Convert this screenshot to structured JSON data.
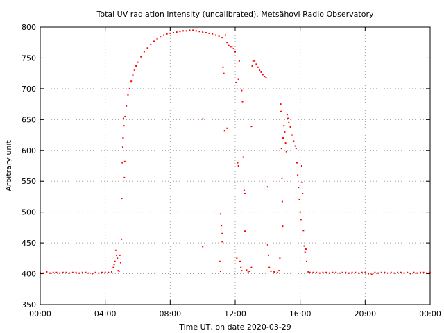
{
  "chart_data": {
    "type": "scatter",
    "title": "Total UV radiation intensity (uncalibrated). Metsähovi Radio Observatory",
    "xlabel": "Time UT, on date 2020-03-29",
    "ylabel": "Arbitrary unit",
    "xlim": [
      0,
      24
    ],
    "ylim": [
      350,
      800
    ],
    "x_unit": "hours UT",
    "x_ticks": [
      0,
      4,
      8,
      12,
      16,
      20,
      24
    ],
    "x_tick_labels": [
      "00:00",
      "04:00",
      "08:00",
      "12:00",
      "16:00",
      "20:00",
      "00:00"
    ],
    "y_ticks": [
      350,
      400,
      450,
      500,
      550,
      600,
      650,
      700,
      750,
      800
    ],
    "y_tick_labels": [
      "350",
      "400",
      "450",
      "500",
      "550",
      "600",
      "650",
      "700",
      "750",
      "800"
    ],
    "grid": true,
    "marker_color": "#ff0000",
    "series": [
      {
        "points": [
          [
            0.0,
            402
          ],
          [
            0.2,
            401
          ],
          [
            0.4,
            403
          ],
          [
            0.6,
            401
          ],
          [
            0.8,
            402
          ],
          [
            1.0,
            402
          ],
          [
            1.2,
            401
          ],
          [
            1.4,
            402
          ],
          [
            1.6,
            402
          ],
          [
            1.8,
            401
          ],
          [
            2.0,
            402
          ],
          [
            2.2,
            402
          ],
          [
            2.4,
            401
          ],
          [
            2.6,
            402
          ],
          [
            2.8,
            402
          ],
          [
            3.0,
            401
          ],
          [
            3.2,
            400
          ],
          [
            3.4,
            402
          ],
          [
            3.6,
            401
          ],
          [
            3.8,
            402
          ],
          [
            4.0,
            402
          ],
          [
            4.2,
            402
          ],
          [
            4.4,
            403
          ],
          [
            4.5,
            410
          ],
          [
            4.55,
            415
          ],
          [
            4.6,
            420
          ],
          [
            4.65,
            438
          ],
          [
            4.7,
            430
          ],
          [
            4.75,
            425
          ],
          [
            4.8,
            405
          ],
          [
            4.85,
            404
          ],
          [
            4.9,
            430
          ],
          [
            4.95,
            418
          ],
          [
            5.0,
            456
          ],
          [
            5.02,
            522
          ],
          [
            5.05,
            580
          ],
          [
            5.08,
            605
          ],
          [
            5.1,
            620
          ],
          [
            5.12,
            652
          ],
          [
            5.15,
            640
          ],
          [
            5.18,
            556
          ],
          [
            5.2,
            582
          ],
          [
            5.22,
            655
          ],
          [
            5.3,
            672
          ],
          [
            5.4,
            690
          ],
          [
            5.5,
            700
          ],
          [
            5.6,
            712
          ],
          [
            5.7,
            722
          ],
          [
            5.8,
            730
          ],
          [
            5.9,
            737
          ],
          [
            6.0,
            743
          ],
          [
            6.2,
            752
          ],
          [
            6.4,
            760
          ],
          [
            6.6,
            766
          ],
          [
            6.8,
            772
          ],
          [
            7.0,
            777
          ],
          [
            7.2,
            781
          ],
          [
            7.4,
            784
          ],
          [
            7.6,
            787
          ],
          [
            7.8,
            789
          ],
          [
            8.0,
            790
          ],
          [
            8.2,
            791
          ],
          [
            8.4,
            792
          ],
          [
            8.6,
            793
          ],
          [
            8.8,
            794
          ],
          [
            9.0,
            794
          ],
          [
            9.2,
            795
          ],
          [
            9.4,
            795
          ],
          [
            9.6,
            794
          ],
          [
            9.8,
            793
          ],
          [
            10.0,
            792
          ],
          [
            10.0,
            651
          ],
          [
            10.0,
            444
          ],
          [
            10.2,
            791
          ],
          [
            10.4,
            790
          ],
          [
            10.6,
            789
          ],
          [
            10.8,
            787
          ],
          [
            11.0,
            785
          ],
          [
            11.05,
            420
          ],
          [
            11.1,
            404
          ],
          [
            11.1,
            497
          ],
          [
            11.15,
            478
          ],
          [
            11.2,
            465
          ],
          [
            11.2,
            452
          ],
          [
            11.2,
            783
          ],
          [
            11.25,
            735
          ],
          [
            11.3,
            725
          ],
          [
            11.35,
            632
          ],
          [
            11.4,
            787
          ],
          [
            11.5,
            636
          ],
          [
            11.5,
            775
          ],
          [
            11.6,
            770
          ],
          [
            11.7,
            768
          ],
          [
            11.8,
            768
          ],
          [
            11.9,
            765
          ],
          [
            12.0,
            760
          ],
          [
            12.05,
            710
          ],
          [
            12.1,
            425
          ],
          [
            12.15,
            580
          ],
          [
            12.2,
            575
          ],
          [
            12.2,
            715
          ],
          [
            12.25,
            745
          ],
          [
            12.3,
            420
          ],
          [
            12.35,
            410
          ],
          [
            12.4,
            405
          ],
          [
            12.4,
            697
          ],
          [
            12.45,
            679
          ],
          [
            12.5,
            589
          ],
          [
            12.55,
            535
          ],
          [
            12.6,
            530
          ],
          [
            12.6,
            469
          ],
          [
            12.7,
            406
          ],
          [
            12.8,
            403
          ],
          [
            12.9,
            404
          ],
          [
            13.0,
            639
          ],
          [
            13.0,
            410
          ],
          [
            13.05,
            737
          ],
          [
            13.1,
            745
          ],
          [
            13.2,
            745
          ],
          [
            13.3,
            740
          ],
          [
            13.4,
            735
          ],
          [
            13.5,
            730
          ],
          [
            13.6,
            727
          ],
          [
            13.7,
            723
          ],
          [
            13.8,
            720
          ],
          [
            13.9,
            718
          ],
          [
            14.0,
            541
          ],
          [
            14.0,
            447
          ],
          [
            14.05,
            430
          ],
          [
            14.1,
            410
          ],
          [
            14.2,
            404
          ],
          [
            14.4,
            403
          ],
          [
            14.6,
            402
          ],
          [
            14.7,
            405
          ],
          [
            14.75,
            425
          ],
          [
            14.8,
            675
          ],
          [
            14.82,
            663
          ],
          [
            14.85,
            603
          ],
          [
            14.88,
            555
          ],
          [
            14.9,
            517
          ],
          [
            14.92,
            477
          ],
          [
            14.95,
            620
          ],
          [
            15.0,
            640
          ],
          [
            15.05,
            630
          ],
          [
            15.1,
            612
          ],
          [
            15.15,
            598
          ],
          [
            15.2,
            658
          ],
          [
            15.25,
            652
          ],
          [
            15.3,
            645
          ],
          [
            15.4,
            638
          ],
          [
            15.5,
            625
          ],
          [
            15.6,
            615
          ],
          [
            15.7,
            607
          ],
          [
            15.75,
            603
          ],
          [
            15.8,
            580
          ],
          [
            15.85,
            560
          ],
          [
            15.9,
            540
          ],
          [
            15.95,
            520
          ],
          [
            16.0,
            500
          ],
          [
            16.05,
            488
          ],
          [
            16.1,
            575
          ],
          [
            16.12,
            548
          ],
          [
            16.15,
            530
          ],
          [
            16.2,
            470
          ],
          [
            16.25,
            445
          ],
          [
            16.3,
            435
          ],
          [
            16.35,
            440
          ],
          [
            16.4,
            420
          ],
          [
            16.5,
            403
          ],
          [
            16.6,
            402
          ],
          [
            16.8,
            402
          ],
          [
            17.0,
            402
          ],
          [
            17.2,
            401
          ],
          [
            17.4,
            402
          ],
          [
            17.6,
            402
          ],
          [
            17.8,
            401
          ],
          [
            18.0,
            402
          ],
          [
            18.2,
            402
          ],
          [
            18.4,
            401
          ],
          [
            18.6,
            402
          ],
          [
            18.8,
            402
          ],
          [
            19.0,
            401
          ],
          [
            19.2,
            402
          ],
          [
            19.4,
            402
          ],
          [
            19.6,
            401
          ],
          [
            19.8,
            402
          ],
          [
            20.0,
            402
          ],
          [
            20.2,
            400
          ],
          [
            20.4,
            399
          ],
          [
            20.6,
            402
          ],
          [
            20.8,
            401
          ],
          [
            21.0,
            402
          ],
          [
            21.2,
            402
          ],
          [
            21.4,
            401
          ],
          [
            21.6,
            402
          ],
          [
            21.8,
            401
          ],
          [
            22.0,
            402
          ],
          [
            22.2,
            402
          ],
          [
            22.4,
            401
          ],
          [
            22.6,
            402
          ],
          [
            22.8,
            400
          ],
          [
            23.0,
            402
          ],
          [
            23.2,
            401
          ],
          [
            23.4,
            402
          ],
          [
            23.6,
            402
          ],
          [
            23.8,
            401
          ],
          [
            24.0,
            402
          ]
        ]
      }
    ]
  }
}
